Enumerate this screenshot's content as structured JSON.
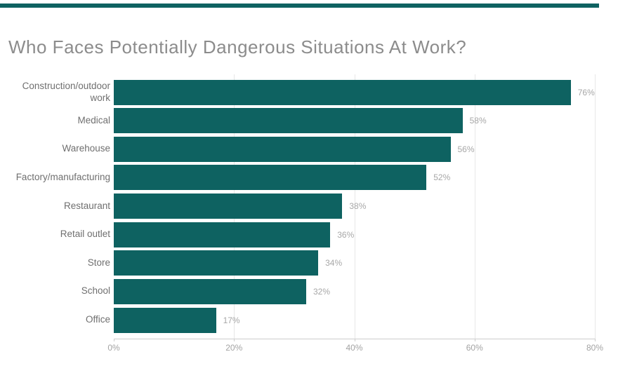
{
  "chart": {
    "title": "Who Faces Potentially Dangerous Situations At Work?"
  },
  "chart_data": {
    "type": "bar",
    "orientation": "horizontal",
    "title": "Who Faces Potentially Dangerous Situations At Work?",
    "categories": [
      "Construction/outdoor work",
      "Medical",
      "Warehouse",
      "Factory/manufacturing",
      "Restaurant",
      "Retail outlet",
      "Store",
      "School",
      "Office"
    ],
    "values": [
      76,
      58,
      56,
      52,
      38,
      36,
      34,
      32,
      17
    ],
    "data_labels": [
      "76%",
      "58%",
      "56%",
      "52%",
      "38%",
      "36%",
      "34%",
      "32%",
      "17%"
    ],
    "value_suffix": "%",
    "xlabel": "",
    "ylabel": "",
    "xlim": [
      0,
      80
    ],
    "x_ticks": [
      {
        "value": 0,
        "label": "0%"
      },
      {
        "value": 20,
        "label": "20%"
      },
      {
        "value": 40,
        "label": "40%"
      },
      {
        "value": 60,
        "label": "60%"
      },
      {
        "value": 80,
        "label": "80%"
      }
    ],
    "grid": "vertical",
    "legend": "none",
    "colors": {
      "bar": "#0e6261",
      "accent_stripe": "#0e6261",
      "title_text": "#8c8c8c",
      "category_label": "#6f6f6f",
      "value_label": "#a7a7a7",
      "tick_label": "#a3a3a3",
      "gridline": "#e7e7e7",
      "axis_line": "#cccccc"
    }
  }
}
